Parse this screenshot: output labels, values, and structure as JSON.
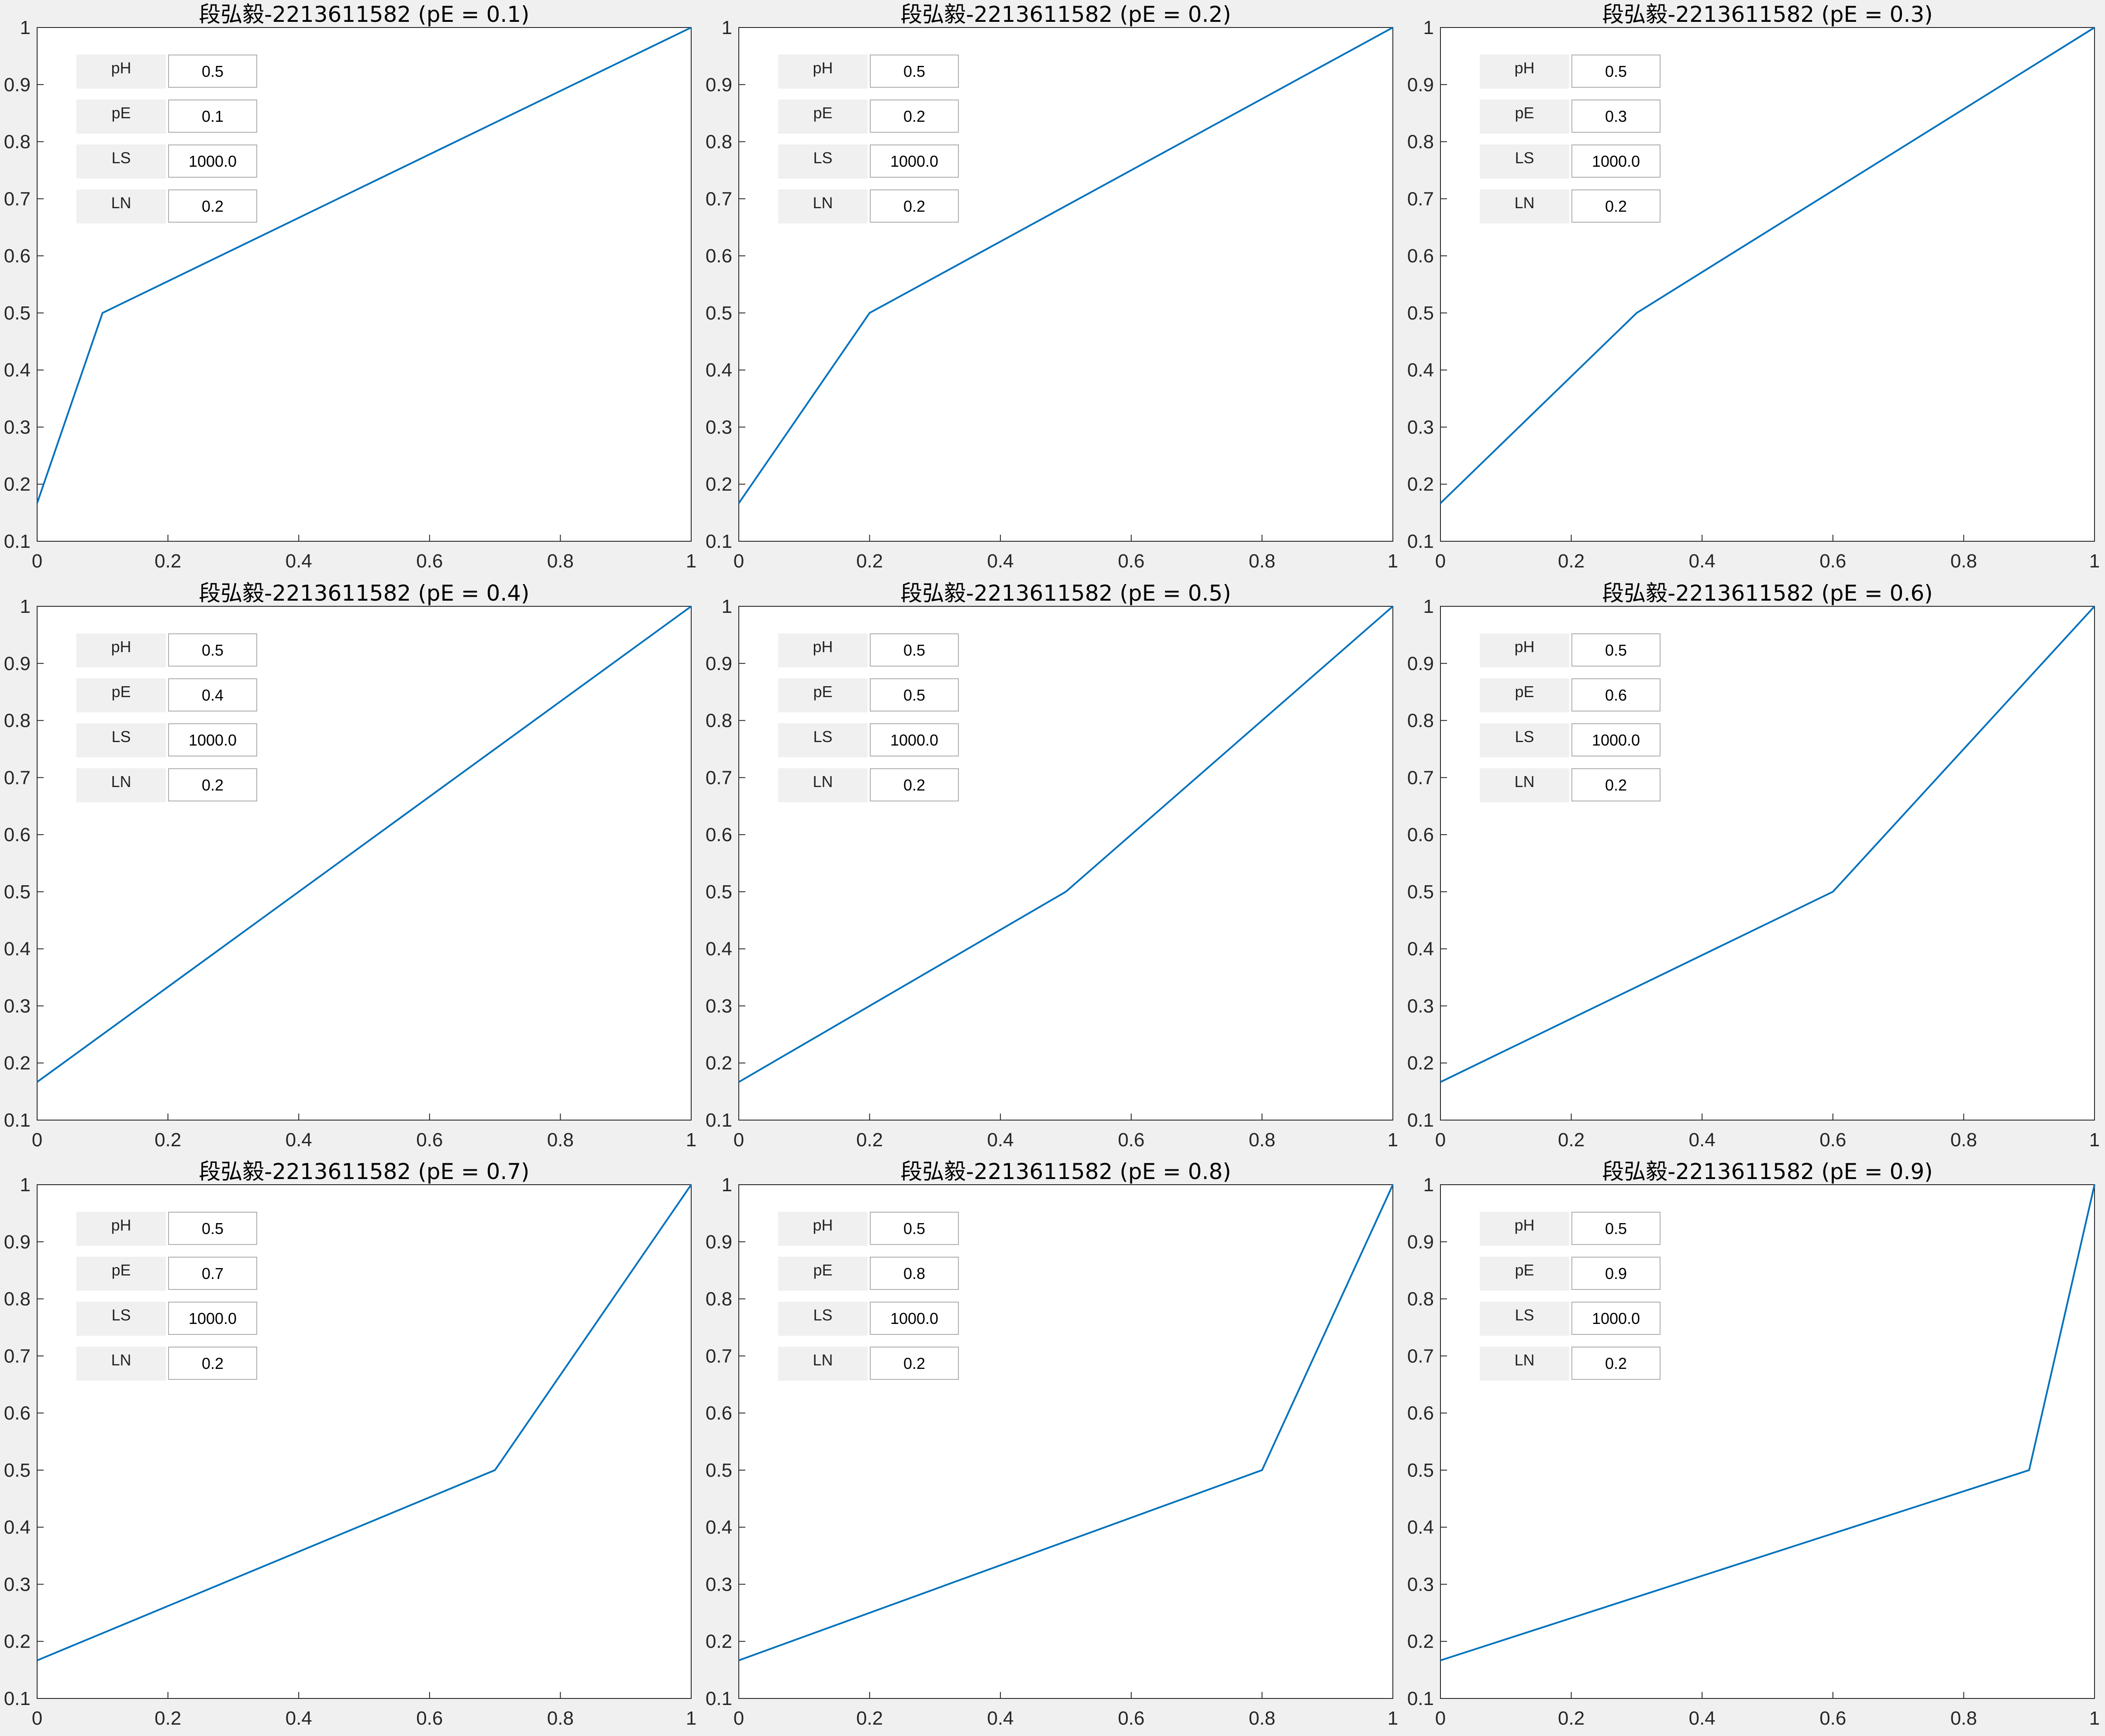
{
  "chart_data": [
    {
      "type": "line",
      "title": "段弘毅-2213611582 (pE = 0.1)",
      "x": [
        0,
        0.1,
        1
      ],
      "y": [
        0.1667,
        0.5,
        1
      ],
      "xlim": [
        0,
        1
      ],
      "ylim": [
        0.1,
        1
      ],
      "xticks": [
        "0",
        "0.2",
        "0.4",
        "0.6",
        "0.8",
        "1"
      ],
      "yticks": [
        "0.1",
        "0.2",
        "0.3",
        "0.4",
        "0.5",
        "0.6",
        "0.7",
        "0.8",
        "0.9",
        "1"
      ],
      "line_color": "#0072bd",
      "grid": false,
      "params": [
        {
          "label": "pH",
          "value": "0.5"
        },
        {
          "label": "pE",
          "value": "0.1"
        },
        {
          "label": "LS",
          "value": "1000.0"
        },
        {
          "label": "LN",
          "value": "0.2"
        }
      ]
    },
    {
      "type": "line",
      "title": "段弘毅-2213611582 (pE = 0.2)",
      "x": [
        0,
        0.2,
        1
      ],
      "y": [
        0.1667,
        0.5,
        1
      ],
      "xlim": [
        0,
        1
      ],
      "ylim": [
        0.1,
        1
      ],
      "xticks": [
        "0",
        "0.2",
        "0.4",
        "0.6",
        "0.8",
        "1"
      ],
      "yticks": [
        "0.1",
        "0.2",
        "0.3",
        "0.4",
        "0.5",
        "0.6",
        "0.7",
        "0.8",
        "0.9",
        "1"
      ],
      "line_color": "#0072bd",
      "grid": false,
      "params": [
        {
          "label": "pH",
          "value": "0.5"
        },
        {
          "label": "pE",
          "value": "0.2"
        },
        {
          "label": "LS",
          "value": "1000.0"
        },
        {
          "label": "LN",
          "value": "0.2"
        }
      ]
    },
    {
      "type": "line",
      "title": "段弘毅-2213611582 (pE = 0.3)",
      "x": [
        0,
        0.3,
        1
      ],
      "y": [
        0.1667,
        0.5,
        1
      ],
      "xlim": [
        0,
        1
      ],
      "ylim": [
        0.1,
        1
      ],
      "xticks": [
        "0",
        "0.2",
        "0.4",
        "0.6",
        "0.8",
        "1"
      ],
      "yticks": [
        "0.1",
        "0.2",
        "0.3",
        "0.4",
        "0.5",
        "0.6",
        "0.7",
        "0.8",
        "0.9",
        "1"
      ],
      "line_color": "#0072bd",
      "grid": false,
      "params": [
        {
          "label": "pH",
          "value": "0.5"
        },
        {
          "label": "pE",
          "value": "0.3"
        },
        {
          "label": "LS",
          "value": "1000.0"
        },
        {
          "label": "LN",
          "value": "0.2"
        }
      ]
    },
    {
      "type": "line",
      "title": "段弘毅-2213611582 (pE = 0.4)",
      "x": [
        0,
        0.4,
        1
      ],
      "y": [
        0.1667,
        0.5,
        1
      ],
      "xlim": [
        0,
        1
      ],
      "ylim": [
        0.1,
        1
      ],
      "xticks": [
        "0",
        "0.2",
        "0.4",
        "0.6",
        "0.8",
        "1"
      ],
      "yticks": [
        "0.1",
        "0.2",
        "0.3",
        "0.4",
        "0.5",
        "0.6",
        "0.7",
        "0.8",
        "0.9",
        "1"
      ],
      "line_color": "#0072bd",
      "grid": false,
      "params": [
        {
          "label": "pH",
          "value": "0.5"
        },
        {
          "label": "pE",
          "value": "0.4"
        },
        {
          "label": "LS",
          "value": "1000.0"
        },
        {
          "label": "LN",
          "value": "0.2"
        }
      ]
    },
    {
      "type": "line",
      "title": "段弘毅-2213611582 (pE = 0.5)",
      "x": [
        0,
        0.5,
        1
      ],
      "y": [
        0.1667,
        0.5,
        1
      ],
      "xlim": [
        0,
        1
      ],
      "ylim": [
        0.1,
        1
      ],
      "xticks": [
        "0",
        "0.2",
        "0.4",
        "0.6",
        "0.8",
        "1"
      ],
      "yticks": [
        "0.1",
        "0.2",
        "0.3",
        "0.4",
        "0.5",
        "0.6",
        "0.7",
        "0.8",
        "0.9",
        "1"
      ],
      "line_color": "#0072bd",
      "grid": false,
      "params": [
        {
          "label": "pH",
          "value": "0.5"
        },
        {
          "label": "pE",
          "value": "0.5"
        },
        {
          "label": "LS",
          "value": "1000.0"
        },
        {
          "label": "LN",
          "value": "0.2"
        }
      ]
    },
    {
      "type": "line",
      "title": "段弘毅-2213611582 (pE = 0.6)",
      "x": [
        0,
        0.6,
        1
      ],
      "y": [
        0.1667,
        0.5,
        1
      ],
      "xlim": [
        0,
        1
      ],
      "ylim": [
        0.1,
        1
      ],
      "xticks": [
        "0",
        "0.2",
        "0.4",
        "0.6",
        "0.8",
        "1"
      ],
      "yticks": [
        "0.1",
        "0.2",
        "0.3",
        "0.4",
        "0.5",
        "0.6",
        "0.7",
        "0.8",
        "0.9",
        "1"
      ],
      "line_color": "#0072bd",
      "grid": false,
      "params": [
        {
          "label": "pH",
          "value": "0.5"
        },
        {
          "label": "pE",
          "value": "0.6"
        },
        {
          "label": "LS",
          "value": "1000.0"
        },
        {
          "label": "LN",
          "value": "0.2"
        }
      ]
    },
    {
      "type": "line",
      "title": "段弘毅-2213611582 (pE = 0.7)",
      "x": [
        0,
        0.7,
        1
      ],
      "y": [
        0.1667,
        0.5,
        1
      ],
      "xlim": [
        0,
        1
      ],
      "ylim": [
        0.1,
        1
      ],
      "xticks": [
        "0",
        "0.2",
        "0.4",
        "0.6",
        "0.8",
        "1"
      ],
      "yticks": [
        "0.1",
        "0.2",
        "0.3",
        "0.4",
        "0.5",
        "0.6",
        "0.7",
        "0.8",
        "0.9",
        "1"
      ],
      "line_color": "#0072bd",
      "grid": false,
      "params": [
        {
          "label": "pH",
          "value": "0.5"
        },
        {
          "label": "pE",
          "value": "0.7"
        },
        {
          "label": "LS",
          "value": "1000.0"
        },
        {
          "label": "LN",
          "value": "0.2"
        }
      ]
    },
    {
      "type": "line",
      "title": "段弘毅-2213611582 (pE = 0.8)",
      "x": [
        0,
        0.8,
        1
      ],
      "y": [
        0.1667,
        0.5,
        1
      ],
      "xlim": [
        0,
        1
      ],
      "ylim": [
        0.1,
        1
      ],
      "xticks": [
        "0",
        "0.2",
        "0.4",
        "0.6",
        "0.8",
        "1"
      ],
      "yticks": [
        "0.1",
        "0.2",
        "0.3",
        "0.4",
        "0.5",
        "0.6",
        "0.7",
        "0.8",
        "0.9",
        "1"
      ],
      "line_color": "#0072bd",
      "grid": false,
      "params": [
        {
          "label": "pH",
          "value": "0.5"
        },
        {
          "label": "pE",
          "value": "0.8"
        },
        {
          "label": "LS",
          "value": "1000.0"
        },
        {
          "label": "LN",
          "value": "0.2"
        }
      ]
    },
    {
      "type": "line",
      "title": "段弘毅-2213611582 (pE = 0.9)",
      "x": [
        0,
        0.9,
        1
      ],
      "y": [
        0.1667,
        0.5,
        1
      ],
      "xlim": [
        0,
        1
      ],
      "ylim": [
        0.1,
        1
      ],
      "xticks": [
        "0",
        "0.2",
        "0.4",
        "0.6",
        "0.8",
        "1"
      ],
      "yticks": [
        "0.1",
        "0.2",
        "0.3",
        "0.4",
        "0.5",
        "0.6",
        "0.7",
        "0.8",
        "0.9",
        "1"
      ],
      "line_color": "#0072bd",
      "grid": false,
      "params": [
        {
          "label": "pH",
          "value": "0.5"
        },
        {
          "label": "pE",
          "value": "0.9"
        },
        {
          "label": "LS",
          "value": "1000.0"
        },
        {
          "label": "LN",
          "value": "0.2"
        }
      ]
    }
  ]
}
